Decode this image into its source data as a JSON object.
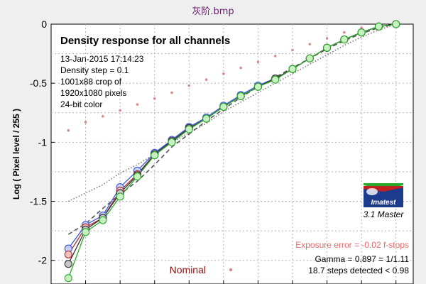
{
  "window": {
    "title": "灰阶.bmp"
  },
  "chart_data": {
    "type": "line",
    "title": "Density response for all channels",
    "xlabel": "",
    "ylabel": "Log ( Pixel level / 255 )",
    "ylim": [
      -2.2,
      0
    ],
    "yticks": [
      0,
      -0.5,
      -1,
      -1.5,
      -2
    ],
    "ytick_labels": [
      "0",
      "-0.5",
      "-1",
      "-1.5",
      "-2"
    ],
    "xlim": [
      0,
      21
    ],
    "grid": true,
    "info_lines": [
      "13-Jan-2015 17:14:23",
      "Density step = 0.1",
      "1001x88 crop of",
      "1920x1080 pixels",
      "24-bit color"
    ],
    "exposure_error": "Exposure error = -0.02 f-stops",
    "gamma_text": "Gamma = 0.897 = 1/1.11",
    "steps_text": "18.7 steps detected < 0.98",
    "nominal_label": "Nominal",
    "logo": {
      "brand": "Imatest",
      "version": "3.1  Master"
    },
    "colors": {
      "red": "#b03030",
      "green": "#2aa82a",
      "blue": "#3a5ad8",
      "gray": "#333333",
      "nominal": "#d98a8a",
      "fit": "#777777"
    },
    "x": [
      1,
      2,
      3,
      4,
      5,
      6,
      7,
      8,
      9,
      10,
      11,
      12,
      13,
      14,
      15,
      16,
      17,
      18,
      19,
      20
    ],
    "series": [
      {
        "key": "blue",
        "values": [
          -1.9,
          -1.7,
          -1.62,
          -1.38,
          -1.24,
          -1.09,
          -0.98,
          -0.87,
          -0.79,
          -0.69,
          -0.6,
          -0.52,
          -0.46,
          -0.38,
          -0.29,
          -0.2,
          -0.13,
          -0.07,
          -0.02,
          0
        ]
      },
      {
        "key": "red",
        "values": [
          -1.95,
          -1.72,
          -1.64,
          -1.41,
          -1.27,
          -1.1,
          -0.99,
          -0.88,
          -0.8,
          -0.7,
          -0.61,
          -0.53,
          -0.46,
          -0.38,
          -0.29,
          -0.2,
          -0.13,
          -0.07,
          -0.02,
          0
        ]
      },
      {
        "key": "gray",
        "values": [
          -2.03,
          -1.74,
          -1.64,
          -1.43,
          -1.28,
          -1.1,
          -0.99,
          -0.88,
          -0.8,
          -0.7,
          -0.61,
          -0.53,
          -0.46,
          -0.38,
          -0.29,
          -0.2,
          -0.13,
          -0.07,
          -0.02,
          0
        ]
      },
      {
        "key": "green",
        "values": [
          -2.15,
          -1.76,
          -1.66,
          -1.46,
          -1.29,
          -1.11,
          -1.0,
          -0.89,
          -0.8,
          -0.7,
          -0.61,
          -0.53,
          -0.47,
          -0.38,
          -0.29,
          -0.2,
          -0.13,
          -0.07,
          -0.02,
          0
        ]
      }
    ],
    "nominal_values": [
      -0.9,
      -0.83,
      -0.78,
      -0.73,
      -0.68,
      -0.63,
      -0.58,
      -0.52,
      -0.47,
      -0.42,
      -0.37,
      -0.32,
      -0.27,
      -0.22,
      -0.17,
      -0.12,
      -0.07,
      -0.03,
      -0.01,
      0
    ],
    "fit_dotted": [
      -1.5,
      -1.43,
      -1.36,
      -1.26,
      -1.19,
      -1.1,
      -1.0,
      -0.92,
      -0.84,
      -0.74,
      -0.66,
      -0.58,
      -0.5,
      -0.42,
      -0.34,
      -0.26,
      -0.18,
      -0.11,
      -0.05,
      0
    ],
    "fit_dashed": [
      -1.78,
      -1.69,
      -1.56,
      -1.44,
      -1.33,
      -1.19,
      -1.04,
      -0.93,
      -0.82,
      -0.72,
      -0.62,
      -0.53,
      -0.45,
      -0.37,
      -0.29,
      -0.21,
      -0.14,
      -0.08,
      -0.03,
      0
    ]
  }
}
